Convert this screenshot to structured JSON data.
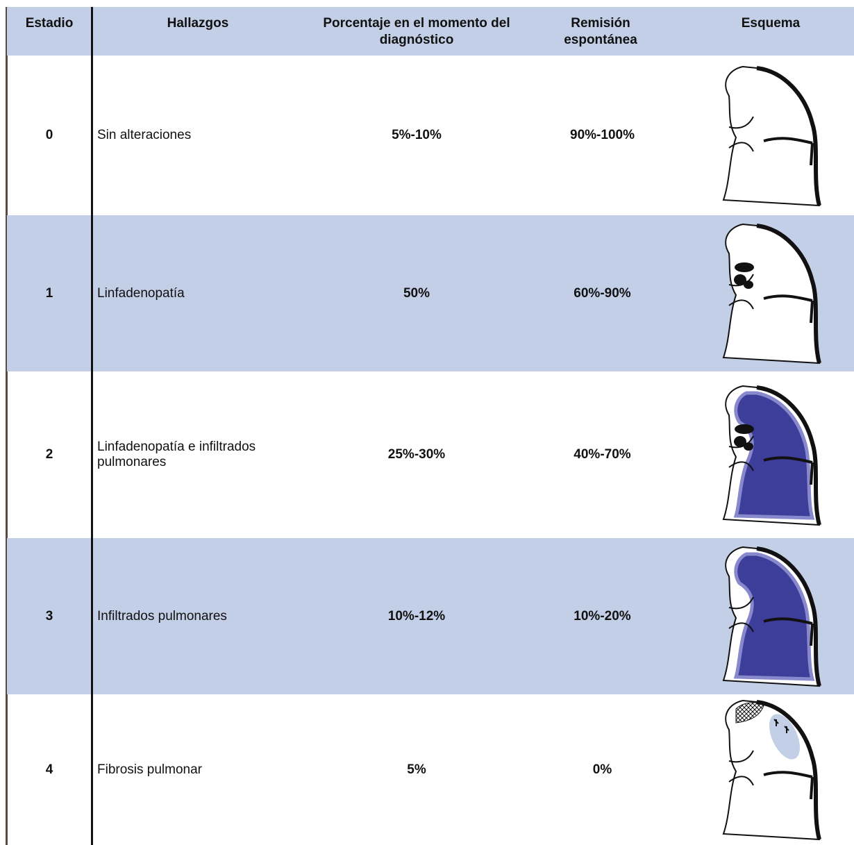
{
  "table": {
    "headers": [
      "Estadio",
      "Hallazgos",
      "Porcentaje en el momento del diagnóstico",
      "Remisión espontánea",
      "Esquema"
    ],
    "rows": [
      [
        "0",
        "Sin alteraciones",
        "5%-10%",
        "90%-100%"
      ],
      [
        "1",
        "Linfadenopatía",
        "50%",
        "60%-90%"
      ],
      [
        "2",
        "Linfadenopatía e infiltrados pulmonares",
        "25%-30%",
        "40%-70%"
      ],
      [
        "3",
        "Infiltrados pulmonares",
        "10%-12%",
        "10%-20%"
      ],
      [
        "4",
        "Fibrosis pulmonar",
        "5%",
        "0%"
      ]
    ]
  }
}
